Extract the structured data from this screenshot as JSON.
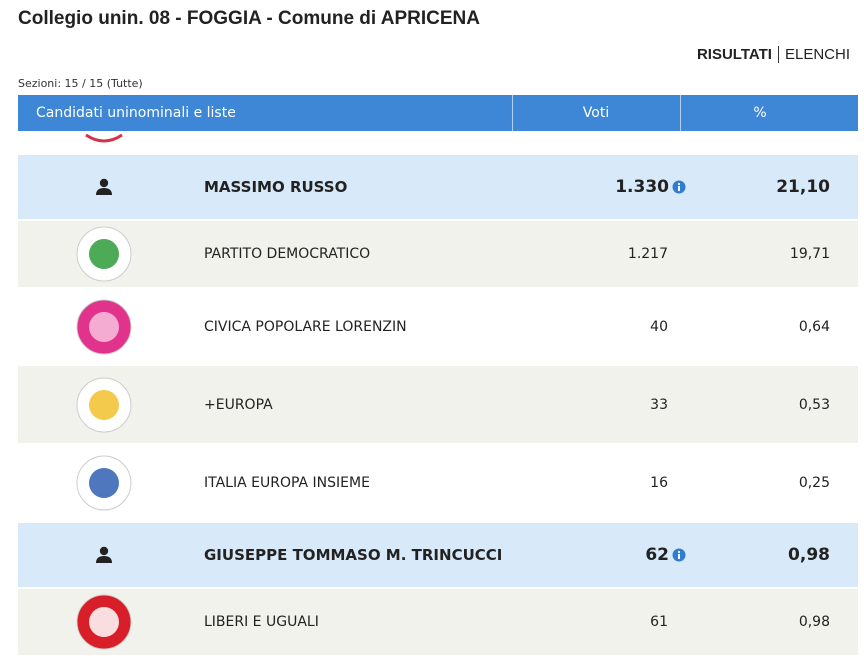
{
  "header": {
    "title": "Collegio unin. 08 - FOGGIA - Comune di APRICENA",
    "tabs": [
      "RISULTATI",
      "ELENCHI"
    ],
    "sections": "Sezioni: 15 / 15 (Tutte)"
  },
  "table": {
    "columns": [
      "Candidati uninominali e liste",
      "Voti",
      "%"
    ],
    "candidates": [
      {
        "name": "MASSIMO RUSSO",
        "votes": "1.330",
        "percent": "21,10",
        "lists": [
          {
            "name": "PARTITO DEMOCRATICO",
            "votes": "1.217",
            "percent": "19,71"
          },
          {
            "name": "CIVICA POPOLARE LORENZIN",
            "votes": "40",
            "percent": "0,64"
          },
          {
            "name": "+EUROPA",
            "votes": "33",
            "percent": "0,53"
          },
          {
            "name": "ITALIA EUROPA INSIEME",
            "votes": "16",
            "percent": "0,25"
          }
        ]
      },
      {
        "name": "GIUSEPPE TOMMASO M. TRINCUCCI",
        "votes": "62",
        "percent": "0,98",
        "lists": [
          {
            "name": "LIBERI E UGUALI",
            "votes": "61",
            "percent": "0,98"
          }
        ]
      }
    ]
  }
}
